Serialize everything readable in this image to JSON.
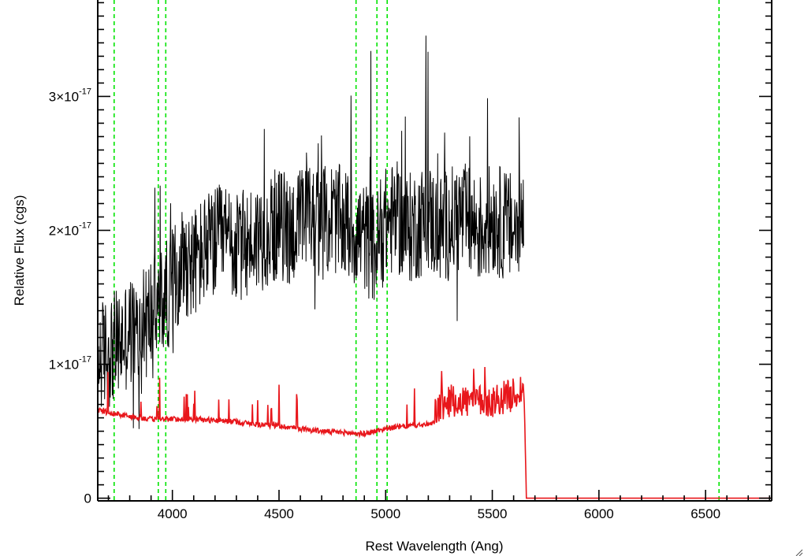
{
  "chart_data": {
    "type": "line",
    "title": "",
    "xlabel": "Rest Wavelength (Ang)",
    "ylabel": "Relative Flux (cgs)",
    "xlim": [
      3650,
      6810
    ],
    "ylim": [
      -2e-19,
      3.72e-17
    ],
    "x_ticks": [
      4000,
      4500,
      5000,
      5500,
      6000,
      6500
    ],
    "x_tick_labels": [
      "4000",
      "4500",
      "5000",
      "5500",
      "6000",
      "6500"
    ],
    "y_ticks": [
      0,
      1e-17,
      2e-17,
      3e-17
    ],
    "y_tick_labels": [
      {
        "mantissa": "0",
        "exponent": ""
      },
      {
        "mantissa": "1×10",
        "exponent": "-17"
      },
      {
        "mantissa": "2×10",
        "exponent": "-17"
      },
      {
        "mantissa": "3×10",
        "exponent": "-17"
      }
    ],
    "reference_lines_x": [
      3727,
      3934,
      3969,
      4861,
      4959,
      5007,
      6563
    ],
    "series": [
      {
        "color": "#000000",
        "description_points_sampled": true,
        "x": [
          3650,
          3700,
          3750,
          3800,
          3850,
          3900,
          3950,
          4000,
          4050,
          4100,
          4150,
          4200,
          4250,
          4300,
          4350,
          4400,
          4450,
          4500,
          4550,
          4600,
          4650,
          4700,
          4750,
          4800,
          4850,
          4900,
          4950,
          5000,
          5050,
          5100,
          5150,
          5200,
          5250,
          5300,
          5350,
          5400,
          5450,
          5500,
          5550,
          5600,
          5645
        ],
        "values": [
          1.05e-17,
          1.1e-17,
          1.15e-17,
          1.25e-17,
          1.2e-17,
          1.4e-17,
          1.45e-17,
          1.6e-17,
          1.8e-17,
          1.75e-17,
          1.85e-17,
          1.9e-17,
          1.95e-17,
          1.85e-17,
          1.9e-17,
          1.95e-17,
          2e-17,
          2.05e-17,
          2e-17,
          2.05e-17,
          2.1e-17,
          2.05e-17,
          2.1e-17,
          2.05e-17,
          2e-17,
          1.95e-17,
          1.85e-17,
          2.05e-17,
          2.1e-17,
          2e-17,
          2.05e-17,
          2.1e-17,
          2e-17,
          2.05e-17,
          2.1e-17,
          2.05e-17,
          2e-17,
          2.1e-17,
          2.05e-17,
          2e-17,
          2.05e-17
        ]
      },
      {
        "color": "#e8161b",
        "x": [
          3650,
          3700,
          3800,
          3900,
          4000,
          4100,
          4200,
          4300,
          4400,
          4500,
          4600,
          4700,
          4800,
          4900,
          5000,
          5100,
          5200,
          5250,
          5300,
          5400,
          5500,
          5600,
          5650,
          5660,
          5700,
          6000,
          6500,
          6810
        ],
        "values": [
          6.4e-18,
          6.2e-18,
          5.9e-18,
          5.7e-18,
          5.7e-18,
          5.7e-18,
          5.6e-18,
          5.5e-18,
          5.3e-18,
          5.2e-18,
          5e-18,
          4.8e-18,
          4.7e-18,
          4.6e-18,
          5e-18,
          5.2e-18,
          5.3e-18,
          5.5e-18,
          6e-18,
          6e-18,
          6e-18,
          6.5e-18,
          7e-18,
          0,
          0,
          0,
          0,
          0
        ]
      }
    ],
    "colors": {
      "reference_line": "#00e400",
      "spectrum": "#000000",
      "error": "#e8161b",
      "axes": "#000000"
    },
    "grid": false,
    "legend": "none"
  }
}
